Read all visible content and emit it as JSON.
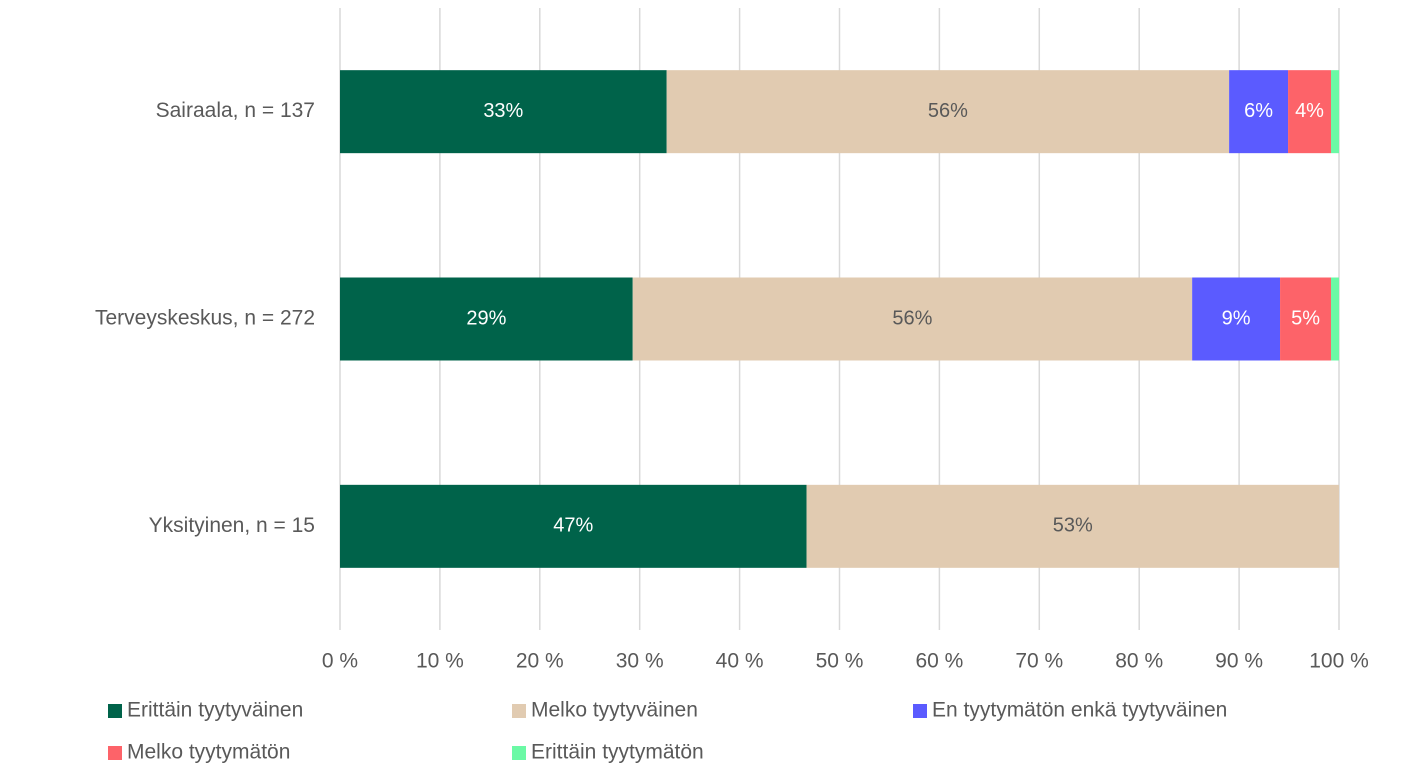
{
  "chart_data": {
    "type": "stacked-barh",
    "categories": [
      "Sairaala, n = 137",
      "Terveyskeskus, n = 272",
      "Yksityinen, n = 15"
    ],
    "series": [
      {
        "name": "Erittäin tyytyväinen",
        "color": "#00634a",
        "values": [
          32.7,
          29.3,
          46.7
        ],
        "value_labels": [
          "33%",
          "29%",
          "47%"
        ]
      },
      {
        "name": "Melko tyytyväinen",
        "color": "#e1cbb1",
        "values": [
          56.3,
          56.0,
          53.3
        ],
        "value_labels": [
          "56%",
          "56%",
          "53%"
        ]
      },
      {
        "name": "En tyytymätön enkä tyytyväinen",
        "color": "#5b5bff",
        "values": [
          5.9,
          8.8,
          0
        ],
        "value_labels": [
          "6%",
          "9%",
          null
        ]
      },
      {
        "name": "Melko tyytymätön",
        "color": "#fd6369",
        "values": [
          4.3,
          5.1,
          0
        ],
        "value_labels": [
          "4%",
          "5%",
          null
        ]
      },
      {
        "name": "Erittäin tyytymätön",
        "color": "#6bf9a5",
        "values": [
          0.8,
          0.8,
          0
        ]
      }
    ],
    "xlim": [
      0,
      100
    ],
    "xticks": [
      {
        "value": 0,
        "label": "0 %"
      },
      {
        "value": 10,
        "label": "10 %"
      },
      {
        "value": 20,
        "label": "20 %"
      },
      {
        "value": 30,
        "label": "30 %"
      },
      {
        "value": 40,
        "label": "40 %"
      },
      {
        "value": 50,
        "label": "50 %"
      },
      {
        "value": 60,
        "label": "60 %"
      },
      {
        "value": 70,
        "label": "70 %"
      },
      {
        "value": 80,
        "label": "80 %"
      },
      {
        "value": 90,
        "label": "90 %"
      },
      {
        "value": 100,
        "label": "100 %"
      }
    ],
    "grid": true,
    "legend": "bottom"
  }
}
